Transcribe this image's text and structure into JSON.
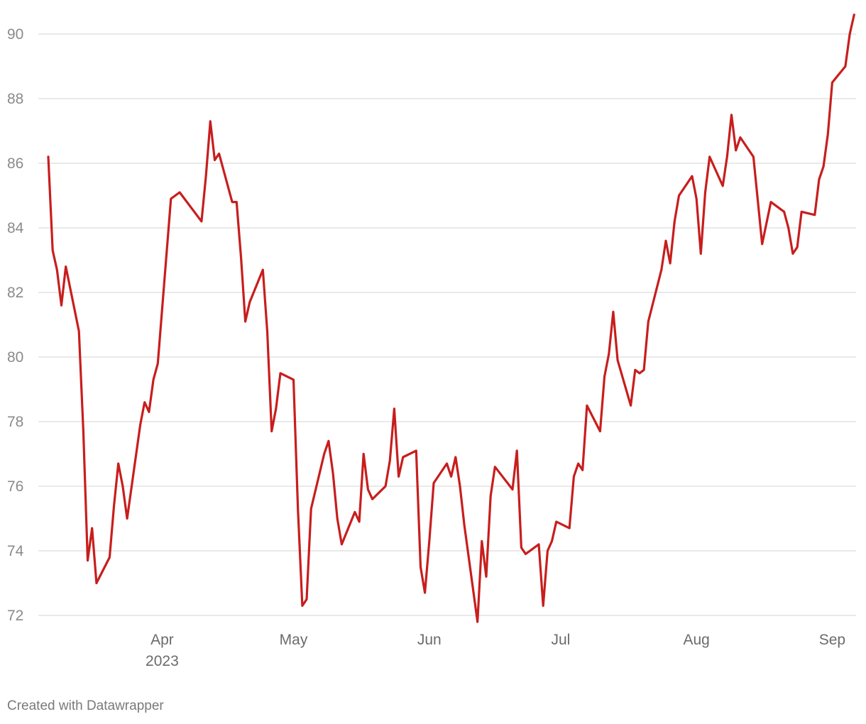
{
  "chart_data": {
    "type": "line",
    "title": "",
    "xlabel": "",
    "ylabel": "",
    "ylim": [
      72,
      90
    ],
    "yticks": [
      72,
      74,
      76,
      78,
      80,
      82,
      84,
      86,
      88,
      90
    ],
    "x_ticks": [
      {
        "date": "2023-04-01",
        "label": "Apr",
        "sublabel": "2023"
      },
      {
        "date": "2023-05-01",
        "label": "May",
        "sublabel": ""
      },
      {
        "date": "2023-06-01",
        "label": "Jun",
        "sublabel": ""
      },
      {
        "date": "2023-07-01",
        "label": "Jul",
        "sublabel": ""
      },
      {
        "date": "2023-08-01",
        "label": "Aug",
        "sublabel": ""
      },
      {
        "date": "2023-09-01",
        "label": "Sep",
        "sublabel": ""
      }
    ],
    "grid": true,
    "line_color": "#c71e1d",
    "series": [
      {
        "points": [
          [
            "2023-03-06",
            86.2
          ],
          [
            "2023-03-07",
            83.3
          ],
          [
            "2023-03-08",
            82.7
          ],
          [
            "2023-03-09",
            81.6
          ],
          [
            "2023-03-10",
            82.8
          ],
          [
            "2023-03-13",
            80.8
          ],
          [
            "2023-03-14",
            77.7
          ],
          [
            "2023-03-15",
            73.7
          ],
          [
            "2023-03-16",
            74.7
          ],
          [
            "2023-03-17",
            73.0
          ],
          [
            "2023-03-20",
            73.8
          ],
          [
            "2023-03-21",
            75.4
          ],
          [
            "2023-03-22",
            76.7
          ],
          [
            "2023-03-23",
            76.0
          ],
          [
            "2023-03-24",
            75.0
          ],
          [
            "2023-03-27",
            77.9
          ],
          [
            "2023-03-28",
            78.6
          ],
          [
            "2023-03-29",
            78.3
          ],
          [
            "2023-03-30",
            79.3
          ],
          [
            "2023-03-31",
            79.8
          ],
          [
            "2023-04-03",
            84.9
          ],
          [
            "2023-04-04",
            85.0
          ],
          [
            "2023-04-05",
            85.1
          ],
          [
            "2023-04-10",
            84.2
          ],
          [
            "2023-04-11",
            85.6
          ],
          [
            "2023-04-12",
            87.3
          ],
          [
            "2023-04-13",
            86.1
          ],
          [
            "2023-04-14",
            86.3
          ],
          [
            "2023-04-17",
            84.8
          ],
          [
            "2023-04-18",
            84.8
          ],
          [
            "2023-04-19",
            83.1
          ],
          [
            "2023-04-20",
            81.1
          ],
          [
            "2023-04-21",
            81.7
          ],
          [
            "2023-04-24",
            82.7
          ],
          [
            "2023-04-25",
            80.8
          ],
          [
            "2023-04-26",
            77.7
          ],
          [
            "2023-04-27",
            78.4
          ],
          [
            "2023-04-28",
            79.5
          ],
          [
            "2023-05-01",
            79.3
          ],
          [
            "2023-05-02",
            75.3
          ],
          [
            "2023-05-03",
            72.3
          ],
          [
            "2023-05-04",
            72.5
          ],
          [
            "2023-05-05",
            75.3
          ],
          [
            "2023-05-08",
            77.0
          ],
          [
            "2023-05-09",
            77.4
          ],
          [
            "2023-05-10",
            76.4
          ],
          [
            "2023-05-11",
            75.0
          ],
          [
            "2023-05-12",
            74.2
          ],
          [
            "2023-05-15",
            75.2
          ],
          [
            "2023-05-16",
            74.9
          ],
          [
            "2023-05-17",
            77.0
          ],
          [
            "2023-05-18",
            75.9
          ],
          [
            "2023-05-19",
            75.6
          ],
          [
            "2023-05-22",
            76.0
          ],
          [
            "2023-05-23",
            76.8
          ],
          [
            "2023-05-24",
            78.4
          ],
          [
            "2023-05-25",
            76.3
          ],
          [
            "2023-05-26",
            76.9
          ],
          [
            "2023-05-29",
            77.1
          ],
          [
            "2023-05-30",
            73.5
          ],
          [
            "2023-05-31",
            72.7
          ],
          [
            "2023-06-01",
            74.3
          ],
          [
            "2023-06-02",
            76.1
          ],
          [
            "2023-06-05",
            76.7
          ],
          [
            "2023-06-06",
            76.3
          ],
          [
            "2023-06-07",
            76.9
          ],
          [
            "2023-06-08",
            76.0
          ],
          [
            "2023-06-09",
            74.8
          ],
          [
            "2023-06-12",
            71.8
          ],
          [
            "2023-06-13",
            74.3
          ],
          [
            "2023-06-14",
            73.2
          ],
          [
            "2023-06-15",
            75.7
          ],
          [
            "2023-06-16",
            76.6
          ],
          [
            "2023-06-20",
            75.9
          ],
          [
            "2023-06-21",
            77.1
          ],
          [
            "2023-06-22",
            74.1
          ],
          [
            "2023-06-23",
            73.9
          ],
          [
            "2023-06-26",
            74.2
          ],
          [
            "2023-06-27",
            72.3
          ],
          [
            "2023-06-28",
            74.0
          ],
          [
            "2023-06-29",
            74.3
          ],
          [
            "2023-06-30",
            74.9
          ],
          [
            "2023-07-03",
            74.7
          ],
          [
            "2023-07-04",
            76.3
          ],
          [
            "2023-07-05",
            76.7
          ],
          [
            "2023-07-06",
            76.5
          ],
          [
            "2023-07-07",
            78.5
          ],
          [
            "2023-07-10",
            77.7
          ],
          [
            "2023-07-11",
            79.4
          ],
          [
            "2023-07-12",
            80.1
          ],
          [
            "2023-07-13",
            81.4
          ],
          [
            "2023-07-14",
            79.9
          ],
          [
            "2023-07-17",
            78.5
          ],
          [
            "2023-07-18",
            79.6
          ],
          [
            "2023-07-19",
            79.5
          ],
          [
            "2023-07-20",
            79.6
          ],
          [
            "2023-07-21",
            81.1
          ],
          [
            "2023-07-24",
            82.7
          ],
          [
            "2023-07-25",
            83.6
          ],
          [
            "2023-07-26",
            82.9
          ],
          [
            "2023-07-27",
            84.2
          ],
          [
            "2023-07-28",
            85.0
          ],
          [
            "2023-07-31",
            85.6
          ],
          [
            "2023-08-01",
            84.9
          ],
          [
            "2023-08-02",
            83.2
          ],
          [
            "2023-08-03",
            85.1
          ],
          [
            "2023-08-04",
            86.2
          ],
          [
            "2023-08-07",
            85.3
          ],
          [
            "2023-08-08",
            86.2
          ],
          [
            "2023-08-09",
            87.5
          ],
          [
            "2023-08-10",
            86.4
          ],
          [
            "2023-08-11",
            86.8
          ],
          [
            "2023-08-14",
            86.2
          ],
          [
            "2023-08-16",
            83.5
          ],
          [
            "2023-08-18",
            84.8
          ],
          [
            "2023-08-21",
            84.5
          ],
          [
            "2023-08-22",
            84.0
          ],
          [
            "2023-08-23",
            83.2
          ],
          [
            "2023-08-24",
            83.4
          ],
          [
            "2023-08-25",
            84.5
          ],
          [
            "2023-08-28",
            84.4
          ],
          [
            "2023-08-29",
            85.5
          ],
          [
            "2023-08-30",
            85.9
          ],
          [
            "2023-08-31",
            86.9
          ],
          [
            "2023-09-01",
            88.5
          ],
          [
            "2023-09-04",
            89.0
          ],
          [
            "2023-09-05",
            90.0
          ],
          [
            "2023-09-06",
            90.6
          ]
        ]
      }
    ]
  },
  "footer": {
    "credit": "Created with Datawrapper"
  }
}
